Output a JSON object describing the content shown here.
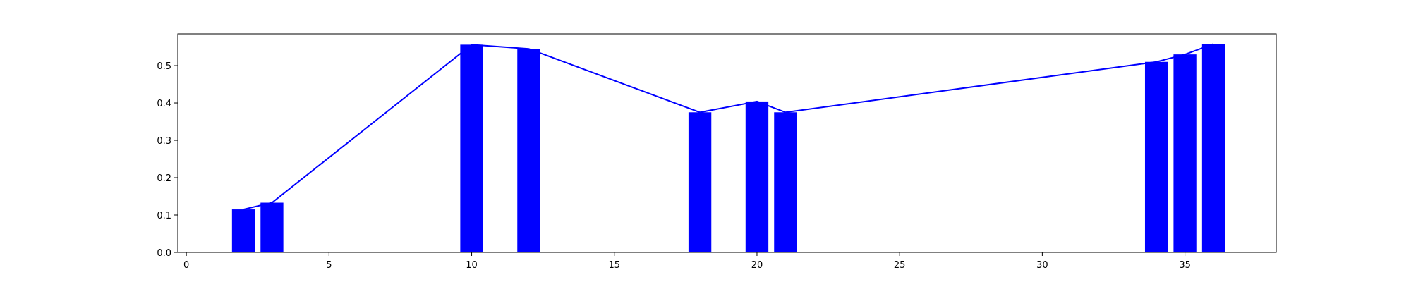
{
  "chart_data": {
    "type": "bar",
    "x": [
      2,
      3,
      10,
      12,
      18,
      20,
      21,
      34,
      35,
      36
    ],
    "values": [
      0.115,
      0.133,
      0.556,
      0.545,
      0.375,
      0.404,
      0.375,
      0.51,
      0.53,
      0.558
    ],
    "line_overlay": true,
    "xlim": [
      -0.3,
      38.2
    ],
    "ylim": [
      0,
      0.585
    ],
    "xticks": [
      0,
      5,
      10,
      15,
      20,
      25,
      30,
      35
    ],
    "yticks": [
      0.0,
      0.1,
      0.2,
      0.3,
      0.4,
      0.5
    ],
    "xtick_labels": [
      "0",
      "5",
      "10",
      "15",
      "20",
      "25",
      "30",
      "35"
    ],
    "ytick_labels": [
      "0.0",
      "0.1",
      "0.2",
      "0.3",
      "0.4",
      "0.5"
    ],
    "bar_width": 0.8,
    "grid": false,
    "colors": {
      "bar": "#0000ff",
      "line": "#0000ff",
      "axes": "#000000"
    }
  }
}
